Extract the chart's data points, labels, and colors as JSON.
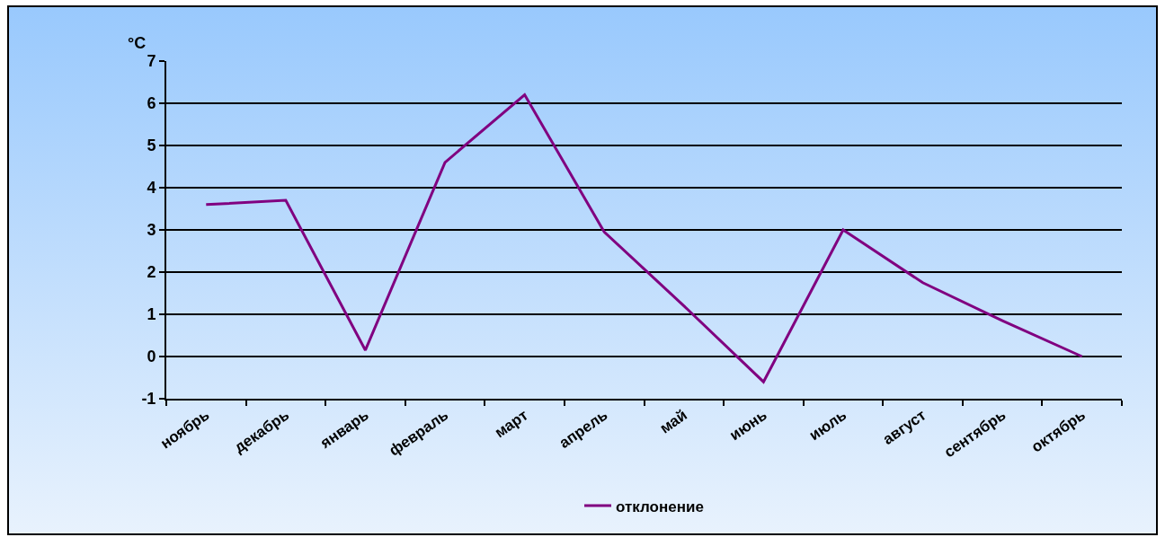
{
  "chart_data": {
    "type": "line",
    "ylabel": "°C",
    "categories": [
      "ноябрь",
      "декабрь",
      "январь",
      "февраль",
      "март",
      "апрель",
      "май",
      "июнь",
      "июль",
      "август",
      "сентябрь",
      "октябрь"
    ],
    "series": [
      {
        "name": "отклонение",
        "color": "#800080",
        "values": [
          3.6,
          3.7,
          0.15,
          4.6,
          6.2,
          2.95,
          1.2,
          -0.6,
          3.0,
          1.75,
          0.85,
          0.0
        ]
      }
    ],
    "ylim": [
      -1,
      7
    ],
    "yticks": [
      -1,
      0,
      1,
      2,
      3,
      4,
      5,
      6,
      7
    ],
    "grid": "y",
    "legend": "bottom",
    "marker": "none",
    "line_style": "solid"
  }
}
